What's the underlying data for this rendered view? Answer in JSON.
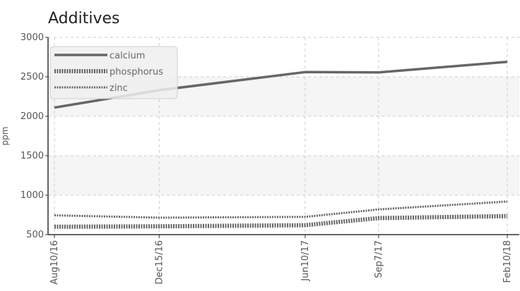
{
  "chart_data": {
    "type": "line",
    "title": "Additives",
    "xlabel": "",
    "ylabel": "ppm",
    "categories": [
      "Aug10/16",
      "Dec15/16",
      "Jun10/17",
      "Sep7/17",
      "Feb10/18"
    ],
    "x_dates": [
      "2016-08-10",
      "2016-12-15",
      "2017-06-10",
      "2017-09-07",
      "2018-02-10"
    ],
    "ylim": [
      500,
      3000
    ],
    "yticks": [
      "500",
      "1000",
      "1500",
      "2000",
      "2500",
      "3000"
    ],
    "grid": true,
    "legend_position": "top-left",
    "series": [
      {
        "name": "calcium",
        "values": [
          2110,
          2330,
          2560,
          2555,
          2690
        ],
        "color": "#666666",
        "style": "solid"
      },
      {
        "name": "phosphorus",
        "values": [
          600,
          605,
          620,
          710,
          735
        ],
        "color": "#666666",
        "style": "dotted-thick"
      },
      {
        "name": "zinc",
        "values": [
          745,
          715,
          725,
          820,
          920
        ],
        "color": "#666666",
        "style": "dotted"
      }
    ]
  }
}
